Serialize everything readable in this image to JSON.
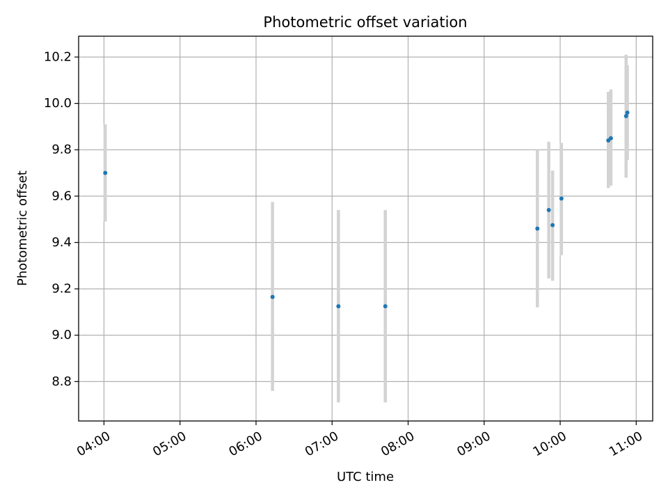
{
  "chart_data": {
    "type": "scatter",
    "title": "Photometric offset variation",
    "xlabel": "UTC time",
    "ylabel": "Photometric offset",
    "xlim": [
      "03:40",
      "11:13"
    ],
    "ylim": [
      8.63,
      10.29
    ],
    "x_ticks": [
      "04:00",
      "05:00",
      "06:00",
      "07:00",
      "08:00",
      "09:00",
      "10:00",
      "11:00"
    ],
    "y_ticks": [
      "8.8",
      "9.0",
      "9.2",
      "9.4",
      "9.6",
      "9.8",
      "10.0",
      "10.2"
    ],
    "grid": true,
    "colors": {
      "point": "#1f77b4",
      "errorbar": "#d3d3d3",
      "grid": "#b0b0b0"
    },
    "series": [
      {
        "points": [
          {
            "x": "04:01",
            "y": 9.7,
            "yerr_low": 9.49,
            "yerr_high": 9.91
          },
          {
            "x": "06:13",
            "y": 9.165,
            "yerr_low": 8.76,
            "yerr_high": 9.575
          },
          {
            "x": "07:05",
            "y": 9.125,
            "yerr_low": 8.71,
            "yerr_high": 9.54
          },
          {
            "x": "07:42",
            "y": 9.125,
            "yerr_low": 8.71,
            "yerr_high": 9.54
          },
          {
            "x": "09:42",
            "y": 9.46,
            "yerr_low": 9.12,
            "yerr_high": 9.8
          },
          {
            "x": "09:51",
            "y": 9.54,
            "yerr_low": 9.245,
            "yerr_high": 9.835
          },
          {
            "x": "09:54",
            "y": 9.475,
            "yerr_low": 9.235,
            "yerr_high": 9.71
          },
          {
            "x": "10:01",
            "y": 9.59,
            "yerr_low": 9.345,
            "yerr_high": 9.83
          },
          {
            "x": "10:38",
            "y": 9.84,
            "yerr_low": 9.635,
            "yerr_high": 10.05
          },
          {
            "x": "10:40",
            "y": 9.85,
            "yerr_low": 9.645,
            "yerr_high": 10.06
          },
          {
            "x": "10:52",
            "y": 9.945,
            "yerr_low": 9.68,
            "yerr_high": 10.21
          },
          {
            "x": "10:53",
            "y": 9.96,
            "yerr_low": 9.755,
            "yerr_high": 10.165
          }
        ]
      }
    ]
  }
}
